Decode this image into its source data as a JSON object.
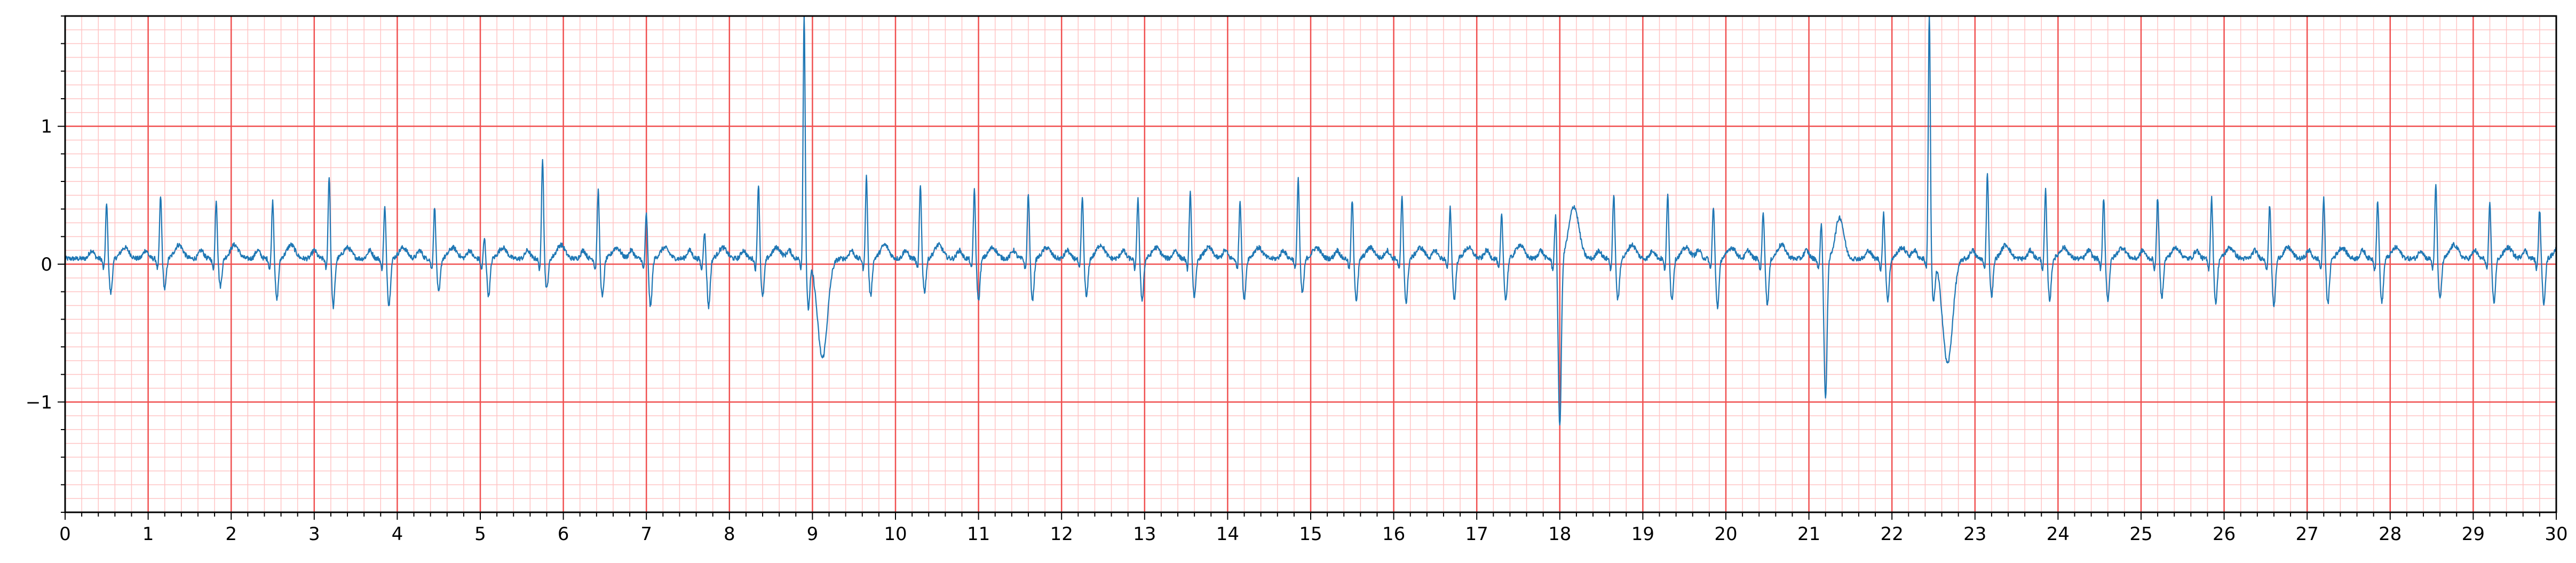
{
  "chart_data": {
    "type": "line",
    "title": "",
    "xlabel": "",
    "ylabel": "",
    "xlim": [
      0,
      30
    ],
    "ylim": [
      -1.8,
      1.8
    ],
    "xticks": [
      0,
      1,
      2,
      3,
      4,
      5,
      6,
      7,
      8,
      9,
      10,
      11,
      12,
      13,
      14,
      15,
      16,
      17,
      18,
      19,
      20,
      21,
      22,
      23,
      24,
      25,
      26,
      27,
      28,
      29,
      30
    ],
    "xtick_labels": [
      "0",
      "1",
      "2",
      "3",
      "4",
      "5",
      "6",
      "7",
      "8",
      "9",
      "10",
      "11",
      "12",
      "13",
      "14",
      "15",
      "16",
      "17",
      "18",
      "19",
      "20",
      "21",
      "22",
      "23",
      "24",
      "25",
      "26",
      "27",
      "28",
      "29",
      "30"
    ],
    "yticks": [
      -1,
      0,
      1
    ],
    "ytick_labels": [
      "−1",
      "0",
      "1"
    ],
    "grid": {
      "major": true,
      "minor": true,
      "major_color": "#f05050",
      "minor_color": "#ffc4c4",
      "minor_x_step": 0.2,
      "minor_y_step": 0.1
    },
    "line_color": "#1f77b4",
    "beats": [
      {
        "t": 0.5,
        "r": 0.4,
        "s": -0.25,
        "tw": 0.08,
        "note": "normal"
      },
      {
        "t": 1.15,
        "r": 0.46,
        "s": -0.22,
        "tw": 0.1
      },
      {
        "t": 1.82,
        "r": 0.43,
        "s": -0.2,
        "tw": 0.1
      },
      {
        "t": 2.5,
        "r": 0.43,
        "s": -0.3,
        "tw": 0.1
      },
      {
        "t": 3.18,
        "r": 0.61,
        "s": -0.35,
        "tw": 0.08
      },
      {
        "t": 3.85,
        "r": 0.38,
        "s": -0.34,
        "tw": 0.08
      },
      {
        "t": 4.45,
        "r": 0.38,
        "s": -0.25,
        "tw": 0.08
      },
      {
        "t": 5.05,
        "r": 0.15,
        "s": -0.27,
        "tw": 0.08
      },
      {
        "t": 5.75,
        "r": 0.74,
        "s": -0.22,
        "tw": 0.1
      },
      {
        "t": 6.42,
        "r": 0.5,
        "s": -0.28,
        "tw": 0.08
      },
      {
        "t": 7.0,
        "r": 0.33,
        "s": -0.35,
        "tw": 0.08
      },
      {
        "t": 7.7,
        "r": 0.2,
        "s": -0.35,
        "tw": 0.08
      },
      {
        "t": 8.35,
        "r": 0.55,
        "s": -0.28,
        "tw": 0.08
      },
      {
        "t": 8.9,
        "r": 1.8,
        "s": -0.35,
        "tw": -0.72,
        "note": "large beat"
      },
      {
        "t": 9.65,
        "r": 0.6,
        "s": -0.27,
        "tw": 0.1
      },
      {
        "t": 10.3,
        "r": 0.53,
        "s": -0.24,
        "tw": 0.1
      },
      {
        "t": 10.95,
        "r": 0.5,
        "s": -0.3,
        "tw": 0.08
      },
      {
        "t": 11.6,
        "r": 0.48,
        "s": -0.3,
        "tw": 0.08
      },
      {
        "t": 12.25,
        "r": 0.45,
        "s": -0.28,
        "tw": 0.1
      },
      {
        "t": 12.92,
        "r": 0.45,
        "s": -0.3,
        "tw": 0.08
      },
      {
        "t": 13.55,
        "r": 0.48,
        "s": -0.28,
        "tw": 0.08
      },
      {
        "t": 14.15,
        "r": 0.43,
        "s": -0.3,
        "tw": 0.08
      },
      {
        "t": 14.85,
        "r": 0.59,
        "s": -0.25,
        "tw": 0.08
      },
      {
        "t": 15.5,
        "r": 0.43,
        "s": -0.3,
        "tw": 0.08
      },
      {
        "t": 16.1,
        "r": 0.45,
        "s": -0.32,
        "tw": 0.08
      },
      {
        "t": 16.68,
        "r": 0.38,
        "s": -0.3,
        "tw": 0.08
      },
      {
        "t": 17.3,
        "r": 0.32,
        "s": -0.3,
        "tw": 0.1
      },
      {
        "t": 17.95,
        "r": 0.33,
        "s": -1.23,
        "tw": 0.38,
        "note": "deep S"
      },
      {
        "t": 18.65,
        "r": 0.48,
        "s": -0.3,
        "tw": 0.1
      },
      {
        "t": 19.3,
        "r": 0.47,
        "s": -0.3,
        "tw": 0.08
      },
      {
        "t": 19.85,
        "r": 0.38,
        "s": -0.35,
        "tw": 0.08
      },
      {
        "t": 20.45,
        "r": 0.35,
        "s": -0.33,
        "tw": 0.1
      },
      {
        "t": 21.15,
        "r": 0.27,
        "s": -1.02,
        "tw": 0.3,
        "note": "deep S"
      },
      {
        "t": 21.9,
        "r": 0.33,
        "s": -0.3,
        "tw": 0.08
      },
      {
        "t": 22.45,
        "r": 1.8,
        "s": -0.3,
        "tw": -0.76,
        "note": "large beat"
      },
      {
        "t": 23.15,
        "r": 0.63,
        "s": -0.27,
        "tw": 0.1
      },
      {
        "t": 23.85,
        "r": 0.5,
        "s": -0.3,
        "tw": 0.08
      },
      {
        "t": 24.55,
        "r": 0.45,
        "s": -0.3,
        "tw": 0.08
      },
      {
        "t": 25.2,
        "r": 0.45,
        "s": -0.28,
        "tw": 0.08
      },
      {
        "t": 25.85,
        "r": 0.45,
        "s": -0.32,
        "tw": 0.08
      },
      {
        "t": 26.55,
        "r": 0.4,
        "s": -0.35,
        "tw": 0.08
      },
      {
        "t": 27.2,
        "r": 0.45,
        "s": -0.33,
        "tw": 0.08
      },
      {
        "t": 27.85,
        "r": 0.43,
        "s": -0.32,
        "tw": 0.08
      },
      {
        "t": 28.55,
        "r": 0.55,
        "s": -0.3,
        "tw": 0.1
      },
      {
        "t": 29.2,
        "r": 0.4,
        "s": -0.32,
        "tw": 0.08
      },
      {
        "t": 29.8,
        "r": 0.36,
        "s": -0.32,
        "tw": 0.08
      }
    ],
    "baseline_segments": [
      {
        "from": 0.0,
        "to": 30.0,
        "level": 0.05
      }
    ]
  }
}
